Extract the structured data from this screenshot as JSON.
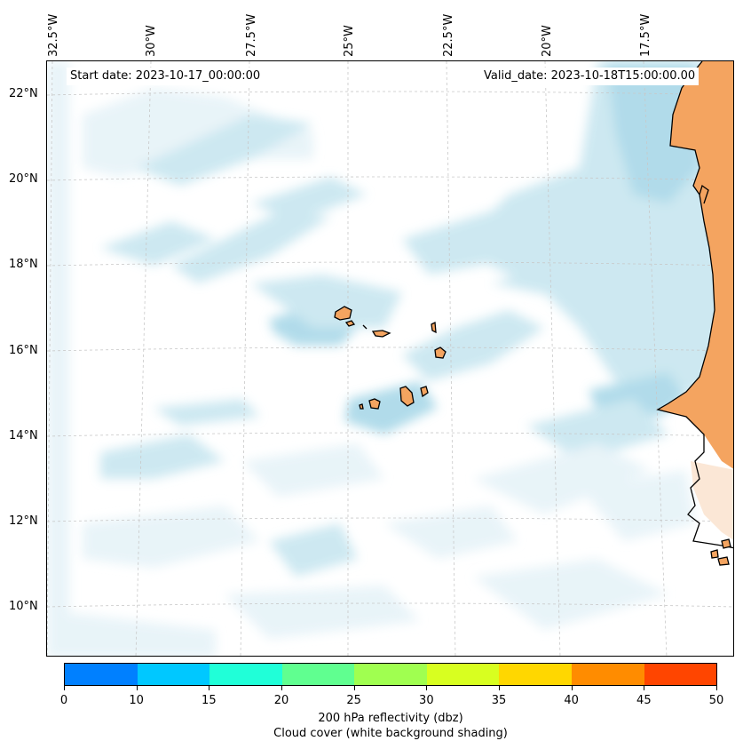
{
  "map": {
    "start_date": "Start date: 2023-10-17_00:00:00",
    "valid_date": "Valid_date: 2023-10-18T15:00:00.00",
    "lon_labels": [
      "32.5°W",
      "30°W",
      "27.5°W",
      "25°W",
      "22.5°W",
      "20°W",
      "17.5°W"
    ],
    "lat_labels": [
      "22°N",
      "20°N",
      "18°N",
      "16°N",
      "14°N",
      "12°N",
      "10°N"
    ],
    "colors": {
      "land": "#f4a460",
      "cloud_light": "#e6f3f8",
      "cloud_mid": "#c8e6f0",
      "cloud_dense": "#a9d8e8",
      "gridline": "#c8c8c8",
      "coastline": "#000000"
    }
  },
  "colorbar": {
    "tick_labels": [
      "0",
      "10",
      "15",
      "20",
      "25",
      "30",
      "35",
      "40",
      "45",
      "50"
    ],
    "colors": [
      "#0080ff",
      "#00c8ff",
      "#20ffd8",
      "#60ff90",
      "#a0ff50",
      "#d8ff20",
      "#ffd700",
      "#ff8c00",
      "#ff4500"
    ],
    "label_line1": "200 hPa reflectivity (dbz)",
    "label_line2": "Cloud cover (white background shading)"
  }
}
